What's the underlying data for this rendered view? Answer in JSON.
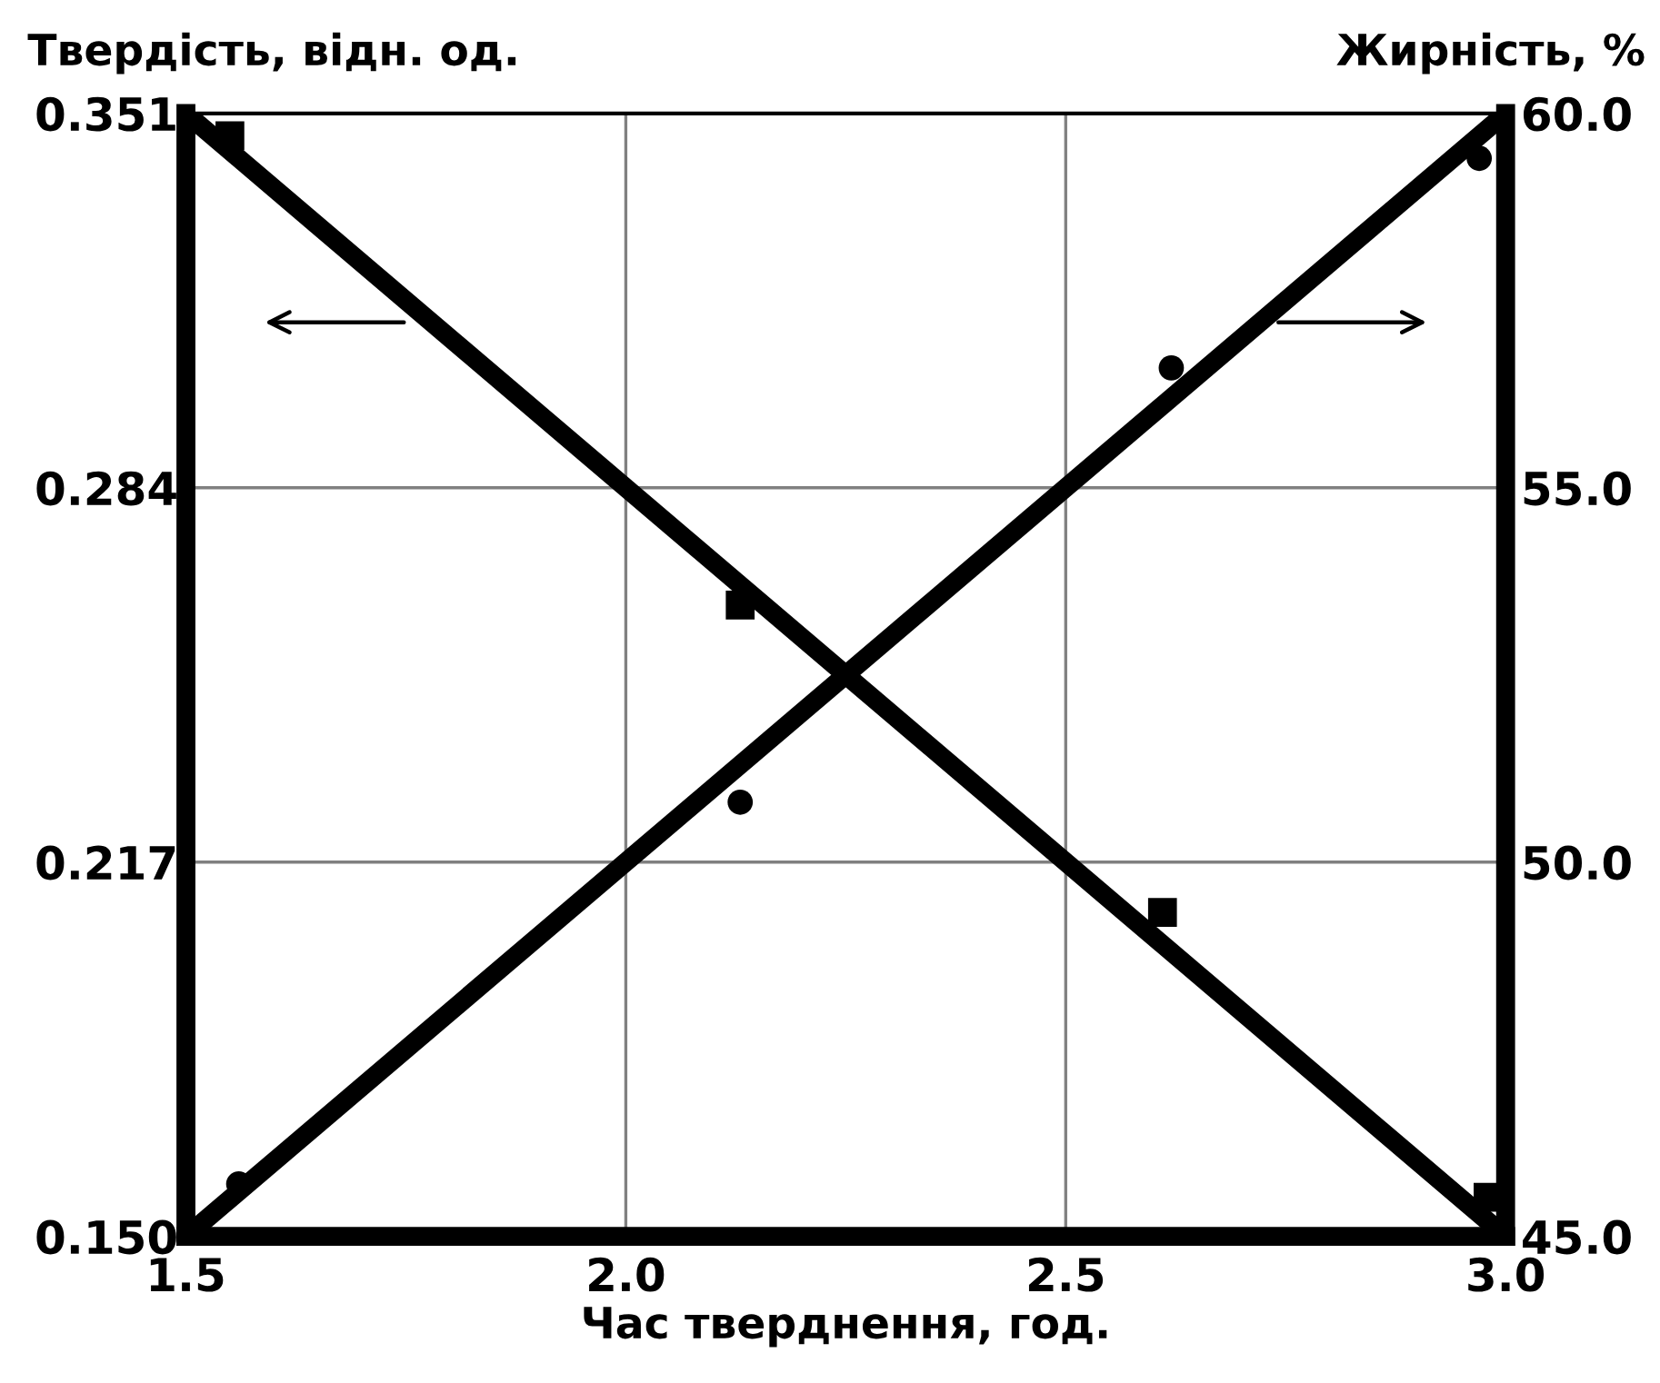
{
  "chart_data": {
    "type": "line",
    "xlabel": "Час тверднення, год.",
    "ylabel": "Твердість, відн. од.",
    "y2label": "Жирність, %",
    "series": [
      {
        "axis": "y",
        "color": "#000000",
        "line_style": "solid",
        "x": [
          1.5,
          3.0
        ],
        "values": [
          0.351,
          0.15
        ]
      },
      {
        "type": "scatter",
        "axis": "y",
        "color": "#000000",
        "marker": "square",
        "x": [
          1.55,
          2.13,
          2.61,
          2.98
        ],
        "values": [
          0.347,
          0.263,
          0.208,
          0.157
        ]
      },
      {
        "axis": "y2",
        "color": "#000000",
        "line_style": "solid",
        "x": [
          1.5,
          3.0
        ],
        "values": [
          45.0,
          60.0
        ]
      },
      {
        "type": "scatter",
        "axis": "y2",
        "color": "#000000",
        "marker": "circle",
        "x": [
          1.56,
          2.13,
          2.62,
          2.97
        ],
        "values": [
          45.7,
          50.8,
          56.6,
          59.4
        ]
      }
    ],
    "xlim": [
      1.5,
      3.0
    ],
    "xticks": [
      {
        "value": 1.5,
        "label": "1.5"
      },
      {
        "value": 2.0,
        "label": "2.0"
      },
      {
        "value": 2.5,
        "label": "2.5"
      },
      {
        "value": 3.0,
        "label": "3.0"
      }
    ],
    "ylim": [
      0.15,
      0.351
    ],
    "yticks": [
      {
        "value": 0.15,
        "label": "0.150"
      },
      {
        "value": 0.217,
        "label": "0.217"
      },
      {
        "value": 0.284,
        "label": "0.284"
      },
      {
        "value": 0.351,
        "label": "0.351"
      }
    ],
    "y2lim": [
      45.0,
      60.0
    ],
    "y2ticks": [
      {
        "value": 45,
        "label": "45.0"
      },
      {
        "value": 50,
        "label": "50.0"
      },
      {
        "value": 55,
        "label": "55.0"
      },
      {
        "value": 60,
        "label": "60.0"
      }
    ],
    "grid": true,
    "legend": false
  }
}
